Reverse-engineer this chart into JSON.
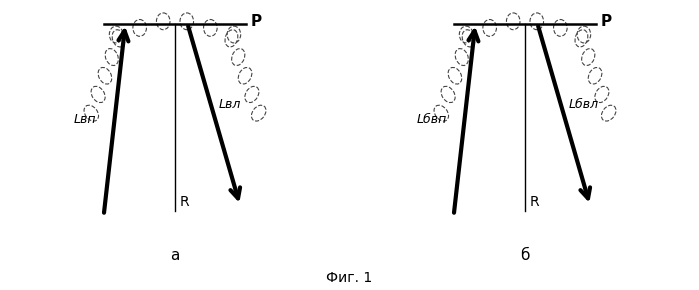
{
  "fig_label": "Фиг. 1",
  "label_a": "а",
  "label_b": "б",
  "background_color": "#ffffff",
  "figsize": [
    6.99,
    2.9
  ],
  "dpi": 100,
  "label_P": "P",
  "label_R": "R",
  "panel_a_left_label": "Lвп",
  "panel_a_right_label": "Lвл",
  "panel_b_left_label": "Lбвп",
  "panel_b_right_label": "Lбвл"
}
